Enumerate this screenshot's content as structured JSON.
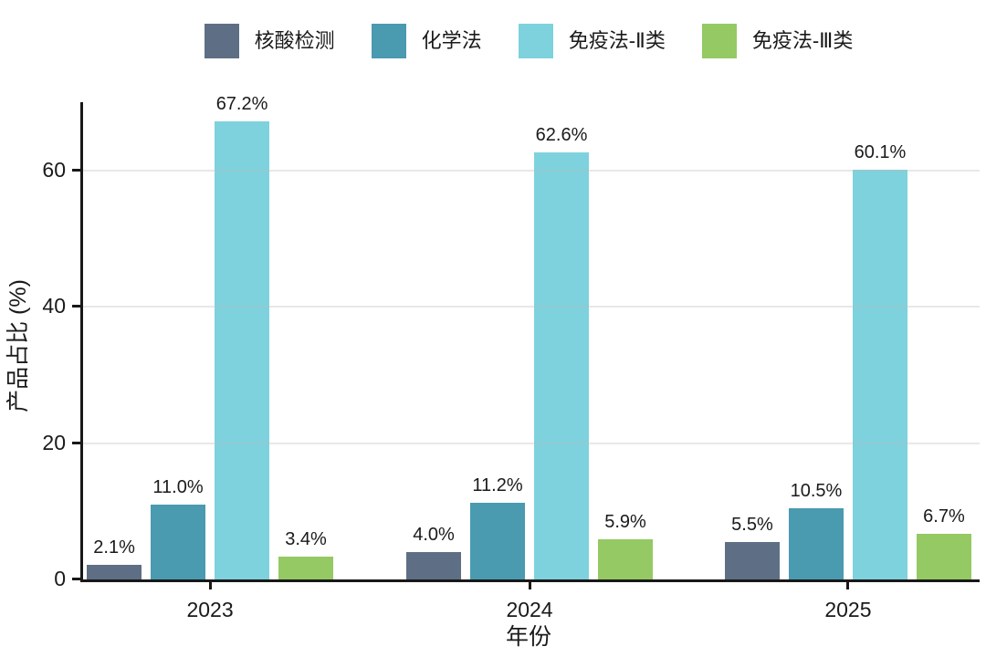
{
  "chart_data": {
    "type": "bar",
    "title": "",
    "xlabel": "年份",
    "ylabel": "产品占比 (%)",
    "categories": [
      "2023",
      "2024",
      "2025"
    ],
    "series": [
      {
        "name": "核酸检测",
        "color": "#5e6f85",
        "values": [
          2.1,
          4.0,
          5.5
        ],
        "labels": [
          "2.1%",
          "4.0%",
          "5.5%"
        ]
      },
      {
        "name": "化学法",
        "color": "#4a9ab0",
        "values": [
          11.0,
          11.2,
          10.5
        ],
        "labels": [
          "11.0%",
          "11.2%",
          "10.5%"
        ]
      },
      {
        "name": "免疫法-Ⅱ类",
        "color": "#7dd2dd",
        "values": [
          67.2,
          62.6,
          60.1
        ],
        "labels": [
          "67.2%",
          "62.6%",
          "60.1%"
        ]
      },
      {
        "name": "免疫法-Ⅲ类",
        "color": "#94c963",
        "values": [
          3.4,
          5.9,
          6.7
        ],
        "labels": [
          "3.4%",
          "5.9%",
          "6.7%"
        ]
      }
    ],
    "yticks": [
      0,
      20,
      40,
      60
    ],
    "ylim": [
      0,
      70
    ],
    "grid": true,
    "legend_position": "top",
    "axis_color": "#181818",
    "gridline_color": "#e6e6e6"
  }
}
